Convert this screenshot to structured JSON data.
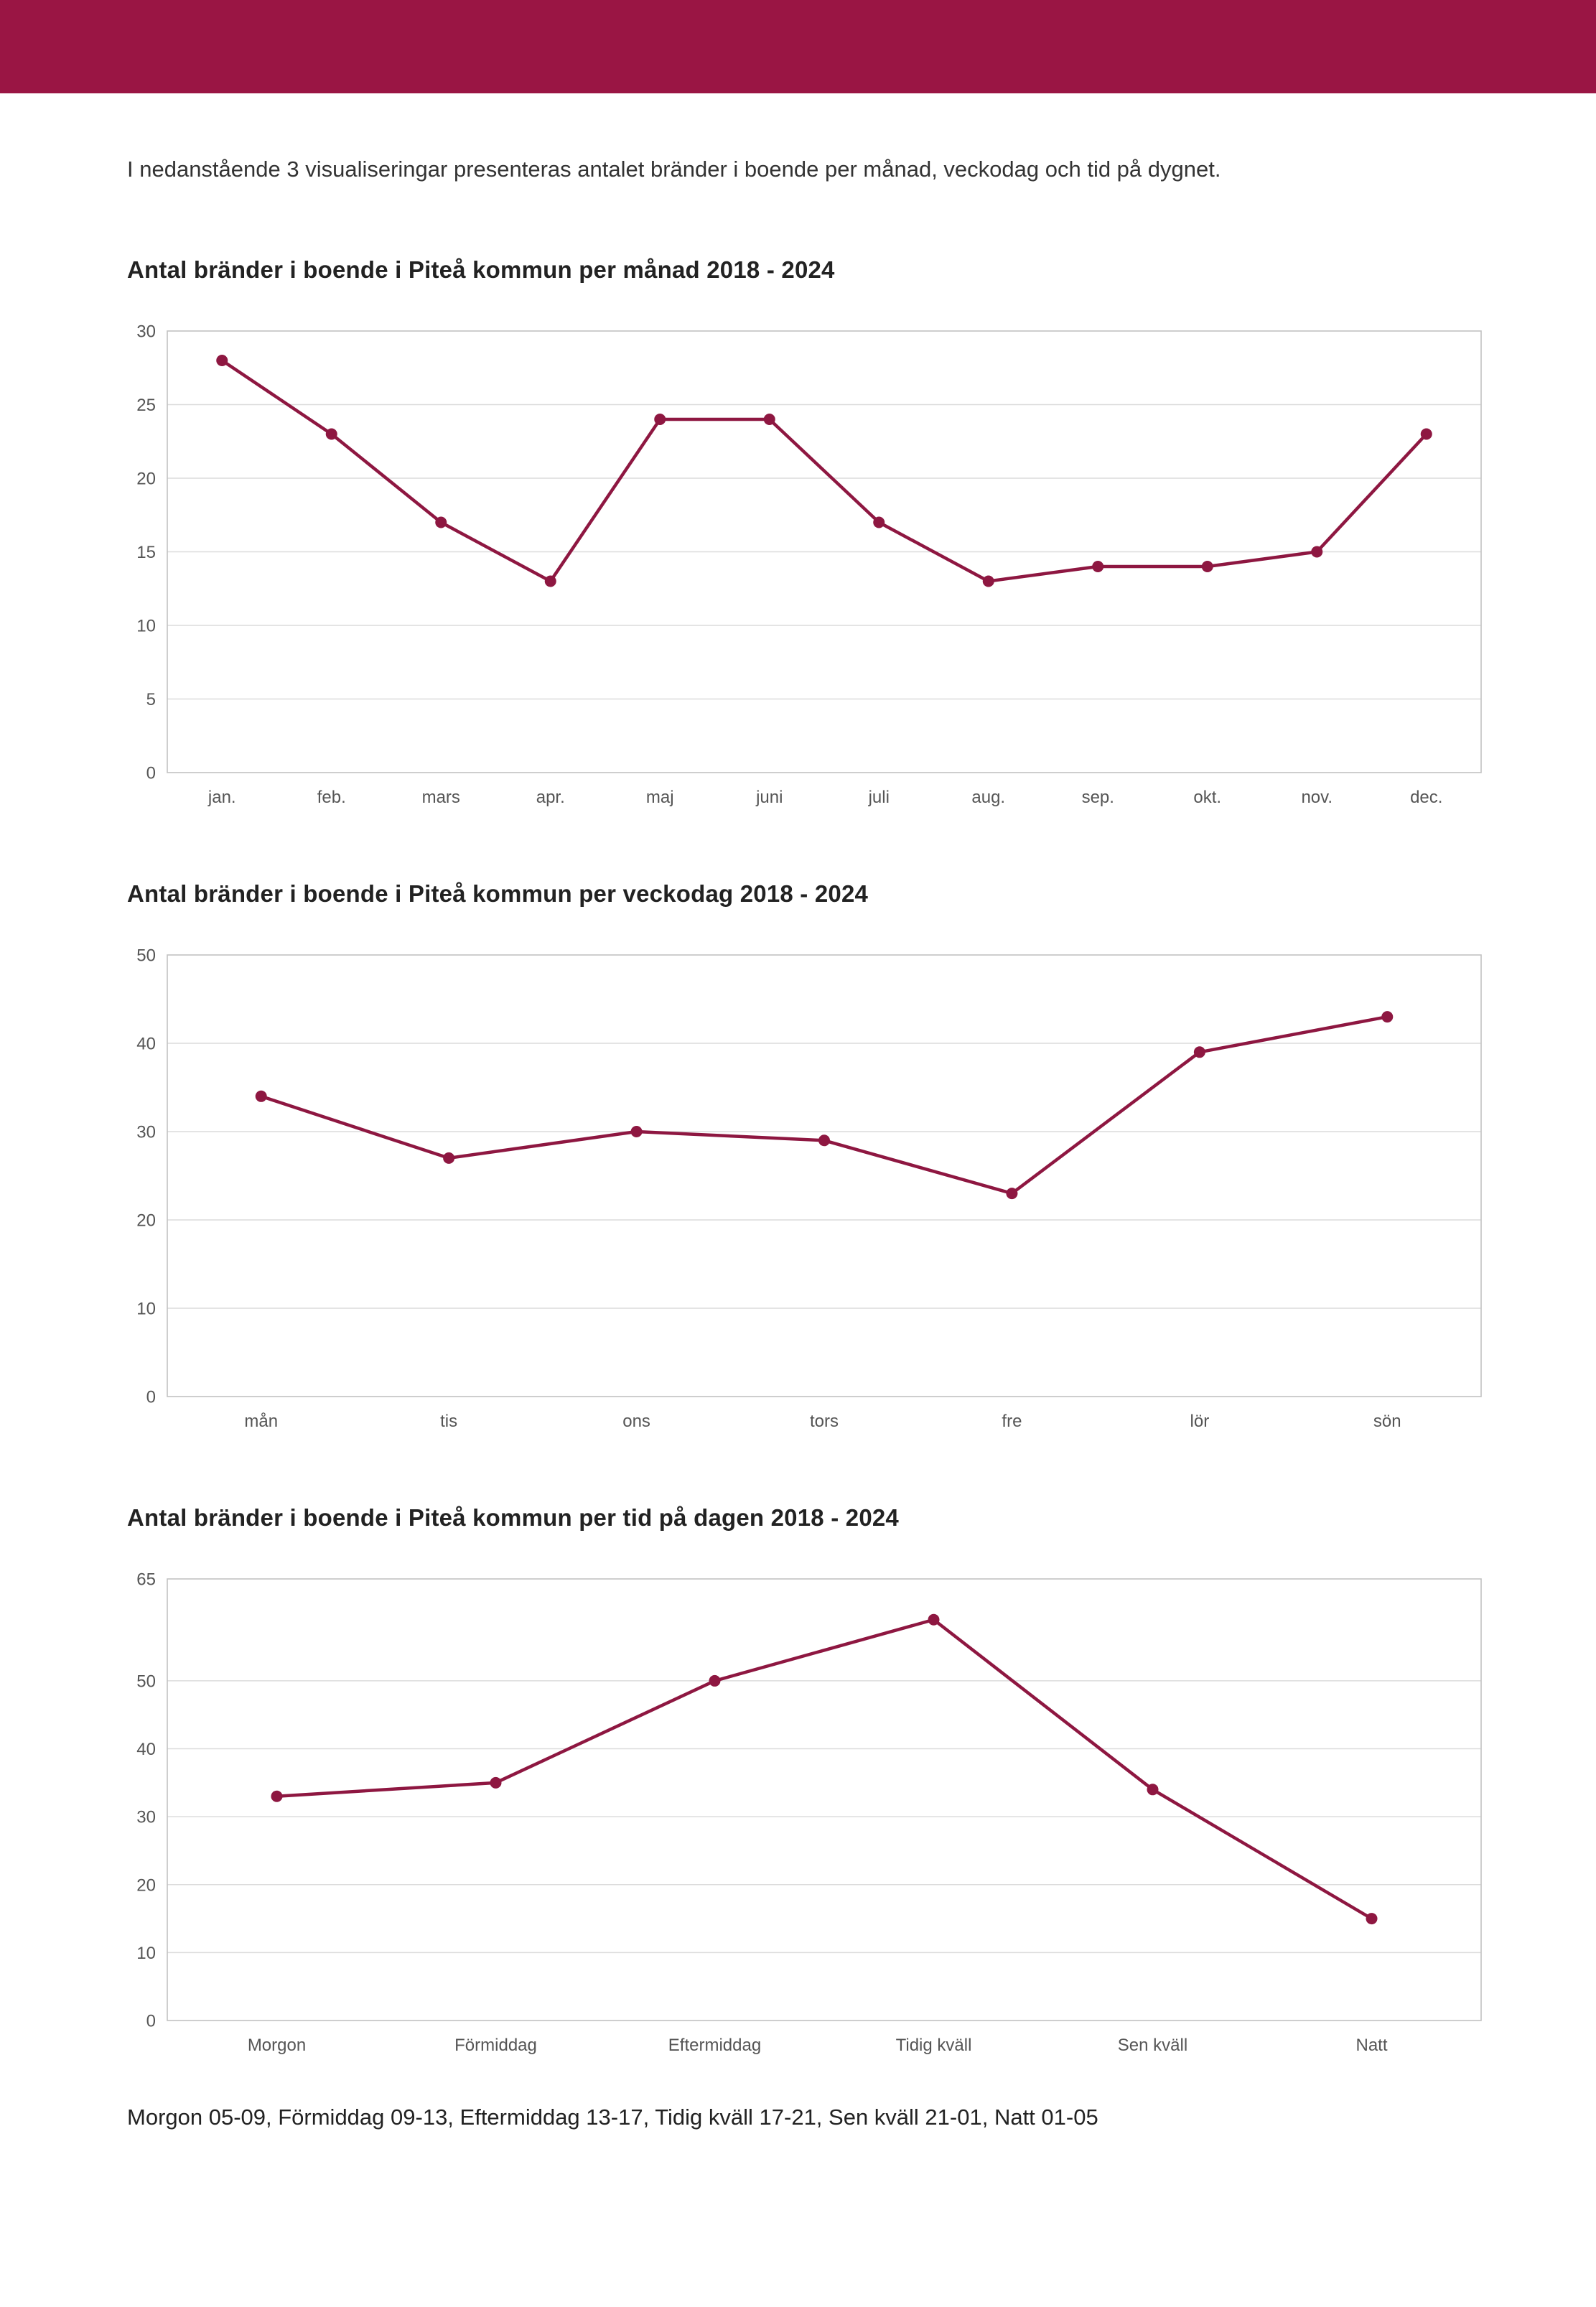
{
  "page": {
    "intro": "I nedanstående 3 visualiseringar presenteras antalet bränder i boende per månad, veckodag och tid på dygnet.",
    "footer": "Morgon 05-09, Förmiddag 09-13, Eftermiddag 13-17, Tidig kväll 17-21, Sen kväll 21-01, Natt 01-05"
  },
  "colors": {
    "header_bar": "#9a1544",
    "line": "#8e1741",
    "grid": "#dcdcdc",
    "axis": "#c2c2c2",
    "tick_text": "#555555"
  },
  "chart_data": [
    {
      "type": "line",
      "title": "Antal bränder i boende i Piteå kommun per månad 2018 - 2024",
      "categories": [
        "jan.",
        "feb.",
        "mars",
        "apr.",
        "maj",
        "juni",
        "juli",
        "aug.",
        "sep.",
        "okt.",
        "nov.",
        "dec."
      ],
      "values": [
        28,
        23,
        17,
        13,
        24,
        24,
        17,
        13,
        14,
        14,
        15,
        23
      ],
      "xlabel": "",
      "ylabel": "",
      "ylim": [
        0,
        30
      ],
      "yticks": [
        0,
        5,
        10,
        15,
        20,
        25,
        30
      ],
      "grid": true,
      "legend": "none"
    },
    {
      "type": "line",
      "title": "Antal bränder i boende i Piteå kommun per veckodag 2018 - 2024",
      "categories": [
        "mån",
        "tis",
        "ons",
        "tors",
        "fre",
        "lör",
        "sön"
      ],
      "values": [
        34,
        27,
        30,
        29,
        23,
        39,
        43
      ],
      "xlabel": "",
      "ylabel": "",
      "ylim": [
        0,
        50
      ],
      "yticks": [
        0,
        10,
        20,
        30,
        40,
        50
      ],
      "grid": true,
      "legend": "none"
    },
    {
      "type": "line",
      "title": "Antal bränder i boende i Piteå kommun per tid på dagen 2018 - 2024",
      "categories": [
        "Morgon",
        "Förmiddag",
        "Eftermiddag",
        "Tidig kväll",
        "Sen kväll",
        "Natt"
      ],
      "values": [
        33,
        35,
        50,
        59,
        34,
        15
      ],
      "xlabel": "",
      "ylabel": "",
      "ylim": [
        0,
        65
      ],
      "yticks": [
        0,
        10,
        20,
        30,
        40,
        50,
        65
      ],
      "grid": true,
      "legend": "none"
    }
  ]
}
